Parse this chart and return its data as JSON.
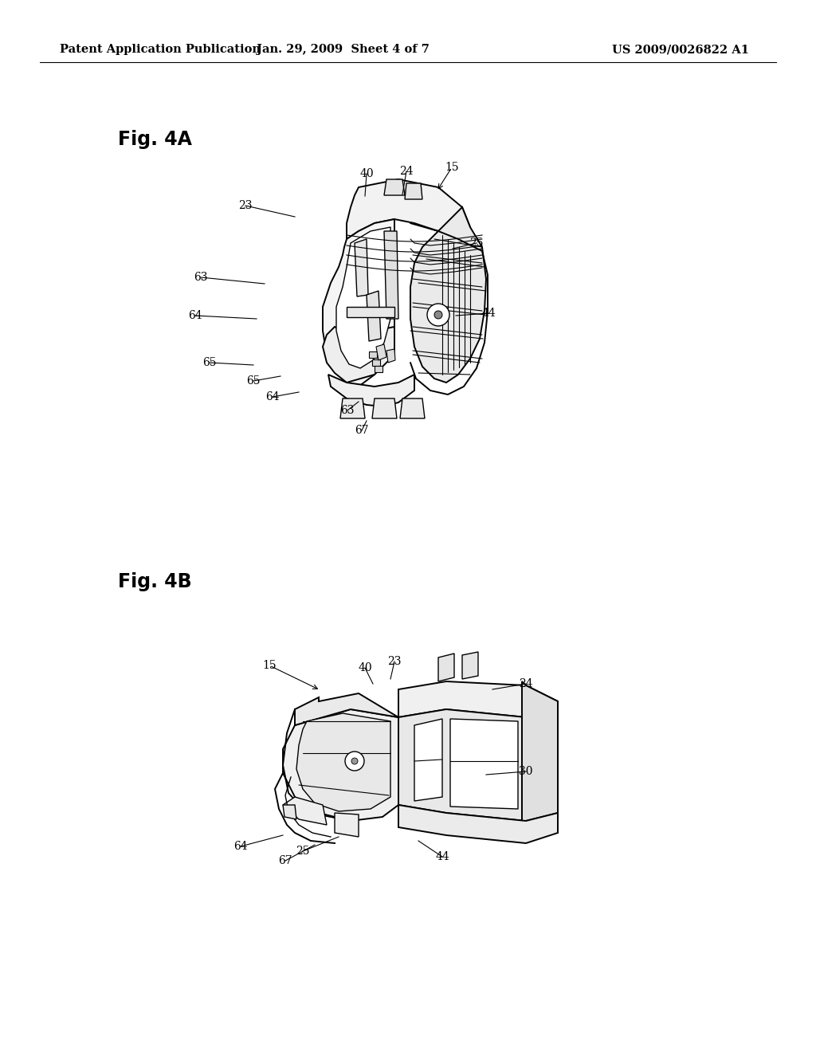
{
  "background_color": "#ffffff",
  "header": {
    "left_text": "Patent Application Publication",
    "center_text": "Jan. 29, 2009  Sheet 4 of 7",
    "right_text": "US 2009/0026822 A1",
    "fontsize": 10.5
  },
  "fig4A_label": "Fig. 4A",
  "fig4B_label": "Fig. 4B",
  "annot_fontsize": 10,
  "label_fontsize": 17
}
